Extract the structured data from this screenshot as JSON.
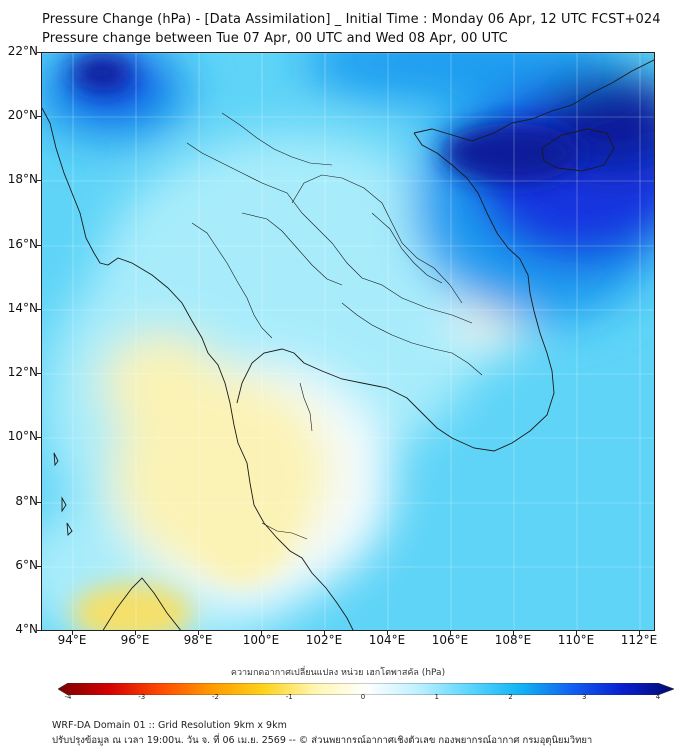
{
  "title_line1": "Pressure Change (hPa) - [Data Assimilation] _ Initial Time : Monday 06 Apr, 12 UTC FCST+024",
  "title_line2": "Pressure change between Tue 07 Apr, 00 UTC and Wed 08 Apr, 00 UTC",
  "lat_labels": [
    "22°N",
    "20°N",
    "18°N",
    "16°N",
    "14°N",
    "12°N",
    "10°N",
    "8°N",
    "6°N",
    "4°N"
  ],
  "lon_labels": [
    "94°E",
    "96°E",
    "98°E",
    "100°E",
    "102°E",
    "104°E",
    "106°E",
    "108°E",
    "110°E",
    "112°E"
  ],
  "colorbar": {
    "title": "ความกดอากาศเปลี่ยนแปลง หน่วย เฮกโตพาสคัล (hPa)",
    "ticks": [
      "-4",
      "-3",
      "-2",
      "-1",
      "0",
      "1",
      "2",
      "3",
      "4"
    ],
    "range": [
      -4,
      4
    ],
    "colors": [
      "#7a0000",
      "#d40000",
      "#ff4a00",
      "#ff9a00",
      "#ffd21a",
      "#fff6b0",
      "#ffffff",
      "#bff0ff",
      "#5cd6ff",
      "#12b4f4",
      "#1262f0",
      "#0a1fd0",
      "#000a70"
    ]
  },
  "footer_line1": "WRF-DA Domain 01 :: Grid Resolution 9km x 9km",
  "footer_line2": "ปรับปรุงข้อมูล ณ เวลา 19:00น. วัน จ. ที่ 06 เม.ย. 2569 -- © ส่วนพยากรณ์อากาศเชิงตัวเลข กองพยากรณ์อากาศ กรมอุตุนิยมวิทยา",
  "map_colors": {
    "base": "#5fd4f7",
    "light": "#a8ecfb",
    "white": "#f4fcff",
    "yellow": "#fbf3b5",
    "yellow_strong": "#f5e06a",
    "blue_mid": "#1a9cf0",
    "blue_deep": "#1236e0",
    "blue_darkest": "#071a9a",
    "grid": "#ffffff",
    "coast": "#1a1a1a"
  }
}
